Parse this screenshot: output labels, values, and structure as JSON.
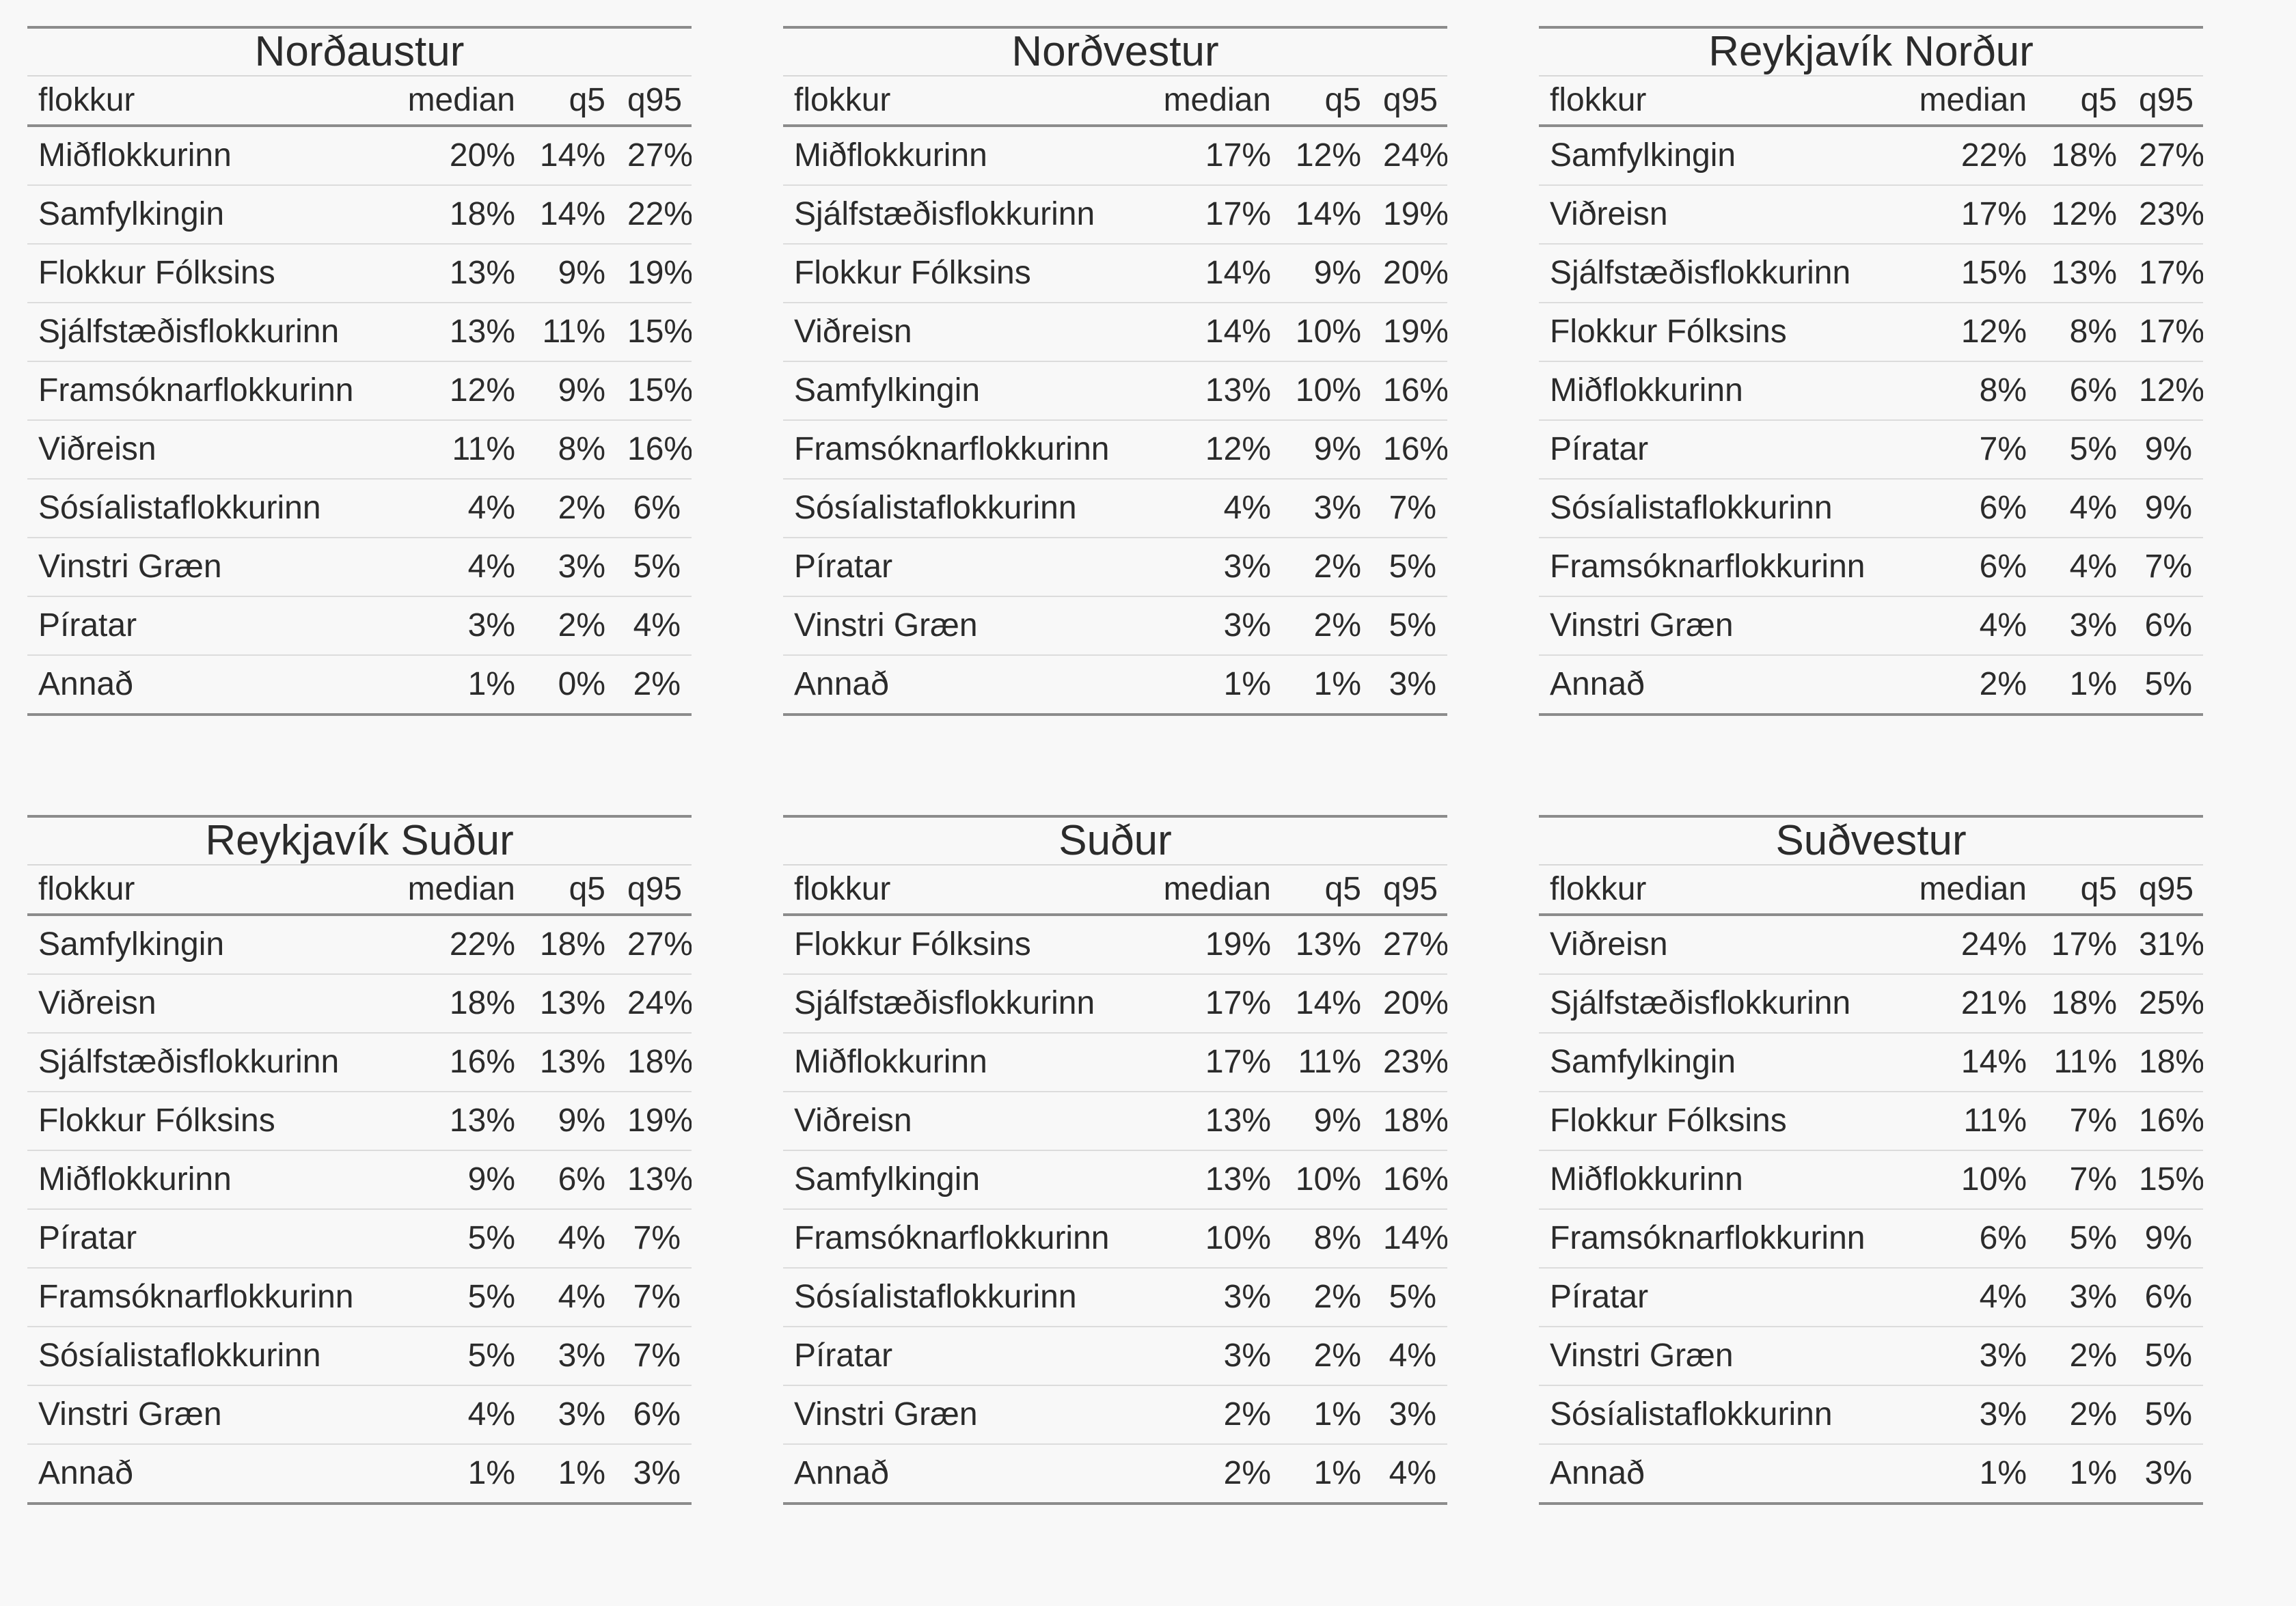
{
  "chart_data": {
    "type": "table",
    "columns": [
      "flokkur",
      "median",
      "q5",
      "q95"
    ],
    "panels": [
      {
        "title": "Norðaustur",
        "rows": [
          [
            "Miðflokkurinn",
            "20%",
            "14%",
            "27%"
          ],
          [
            "Samfylkingin",
            "18%",
            "14%",
            "22%"
          ],
          [
            "Flokkur Fólksins",
            "13%",
            "9%",
            "19%"
          ],
          [
            "Sjálfstæðisflokkurinn",
            "13%",
            "11%",
            "15%"
          ],
          [
            "Framsóknarflokkurinn",
            "12%",
            "9%",
            "15%"
          ],
          [
            "Viðreisn",
            "11%",
            "8%",
            "16%"
          ],
          [
            "Sósíalistaflokkurinn",
            "4%",
            "2%",
            "6%"
          ],
          [
            "Vinstri Græn",
            "4%",
            "3%",
            "5%"
          ],
          [
            "Píratar",
            "3%",
            "2%",
            "4%"
          ],
          [
            "Annað",
            "1%",
            "0%",
            "2%"
          ]
        ]
      },
      {
        "title": "Norðvestur",
        "rows": [
          [
            "Miðflokkurinn",
            "17%",
            "12%",
            "24%"
          ],
          [
            "Sjálfstæðisflokkurinn",
            "17%",
            "14%",
            "19%"
          ],
          [
            "Flokkur Fólksins",
            "14%",
            "9%",
            "20%"
          ],
          [
            "Viðreisn",
            "14%",
            "10%",
            "19%"
          ],
          [
            "Samfylkingin",
            "13%",
            "10%",
            "16%"
          ],
          [
            "Framsóknarflokkurinn",
            "12%",
            "9%",
            "16%"
          ],
          [
            "Sósíalistaflokkurinn",
            "4%",
            "3%",
            "7%"
          ],
          [
            "Píratar",
            "3%",
            "2%",
            "5%"
          ],
          [
            "Vinstri Græn",
            "3%",
            "2%",
            "5%"
          ],
          [
            "Annað",
            "1%",
            "1%",
            "3%"
          ]
        ]
      },
      {
        "title": "Reykjavík Norður",
        "rows": [
          [
            "Samfylkingin",
            "22%",
            "18%",
            "27%"
          ],
          [
            "Viðreisn",
            "17%",
            "12%",
            "23%"
          ],
          [
            "Sjálfstæðisflokkurinn",
            "15%",
            "13%",
            "17%"
          ],
          [
            "Flokkur Fólksins",
            "12%",
            "8%",
            "17%"
          ],
          [
            "Miðflokkurinn",
            "8%",
            "6%",
            "12%"
          ],
          [
            "Píratar",
            "7%",
            "5%",
            "9%"
          ],
          [
            "Sósíalistaflokkurinn",
            "6%",
            "4%",
            "9%"
          ],
          [
            "Framsóknarflokkurinn",
            "6%",
            "4%",
            "7%"
          ],
          [
            "Vinstri Græn",
            "4%",
            "3%",
            "6%"
          ],
          [
            "Annað",
            "2%",
            "1%",
            "5%"
          ]
        ]
      },
      {
        "title": "Reykjavík Suður",
        "rows": [
          [
            "Samfylkingin",
            "22%",
            "18%",
            "27%"
          ],
          [
            "Viðreisn",
            "18%",
            "13%",
            "24%"
          ],
          [
            "Sjálfstæðisflokkurinn",
            "16%",
            "13%",
            "18%"
          ],
          [
            "Flokkur Fólksins",
            "13%",
            "9%",
            "19%"
          ],
          [
            "Miðflokkurinn",
            "9%",
            "6%",
            "13%"
          ],
          [
            "Píratar",
            "5%",
            "4%",
            "7%"
          ],
          [
            "Framsóknarflokkurinn",
            "5%",
            "4%",
            "7%"
          ],
          [
            "Sósíalistaflokkurinn",
            "5%",
            "3%",
            "7%"
          ],
          [
            "Vinstri Græn",
            "4%",
            "3%",
            "6%"
          ],
          [
            "Annað",
            "1%",
            "1%",
            "3%"
          ]
        ]
      },
      {
        "title": "Suður",
        "rows": [
          [
            "Flokkur Fólksins",
            "19%",
            "13%",
            "27%"
          ],
          [
            "Sjálfstæðisflokkurinn",
            "17%",
            "14%",
            "20%"
          ],
          [
            "Miðflokkurinn",
            "17%",
            "11%",
            "23%"
          ],
          [
            "Viðreisn",
            "13%",
            "9%",
            "18%"
          ],
          [
            "Samfylkingin",
            "13%",
            "10%",
            "16%"
          ],
          [
            "Framsóknarflokkurinn",
            "10%",
            "8%",
            "14%"
          ],
          [
            "Sósíalistaflokkurinn",
            "3%",
            "2%",
            "5%"
          ],
          [
            "Píratar",
            "3%",
            "2%",
            "4%"
          ],
          [
            "Vinstri Græn",
            "2%",
            "1%",
            "3%"
          ],
          [
            "Annað",
            "2%",
            "1%",
            "4%"
          ]
        ]
      },
      {
        "title": "Suðvestur",
        "rows": [
          [
            "Viðreisn",
            "24%",
            "17%",
            "31%"
          ],
          [
            "Sjálfstæðisflokkurinn",
            "21%",
            "18%",
            "25%"
          ],
          [
            "Samfylkingin",
            "14%",
            "11%",
            "18%"
          ],
          [
            "Flokkur Fólksins",
            "11%",
            "7%",
            "16%"
          ],
          [
            "Miðflokkurinn",
            "10%",
            "7%",
            "15%"
          ],
          [
            "Framsóknarflokkurinn",
            "6%",
            "5%",
            "9%"
          ],
          [
            "Píratar",
            "4%",
            "3%",
            "6%"
          ],
          [
            "Vinstri Græn",
            "3%",
            "2%",
            "5%"
          ],
          [
            "Sósíalistaflokkurinn",
            "3%",
            "2%",
            "5%"
          ],
          [
            "Annað",
            "1%",
            "1%",
            "3%"
          ]
        ]
      }
    ]
  }
}
